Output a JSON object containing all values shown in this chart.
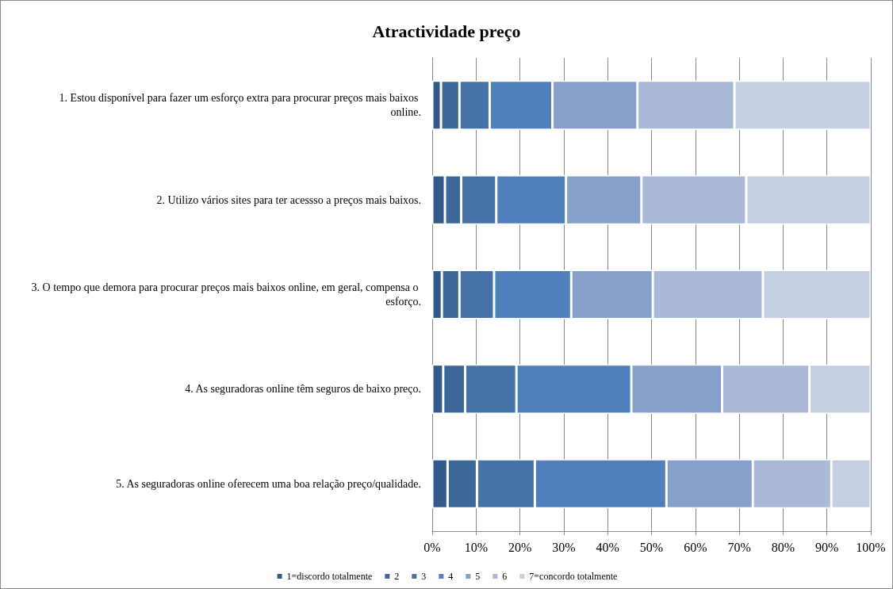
{
  "chart_data": {
    "type": "bar",
    "orientation": "horizontal",
    "stacked": true,
    "title": "Atractividade preço",
    "categories": [
      "1. Estou disponível para fazer um esforço extra para procurar preços mais baixos online.",
      "2. Utilizo vários sites para ter acessso a preços mais baixos.",
      "3. O tempo que demora para procurar preços mais baixos online, em geral, compensa o esforço.",
      "4. As seguradoras online têm seguros de baixo preço.",
      "5. As seguradoras online oferecem uma boa relação preço/qualidade."
    ],
    "series": [
      {
        "name": "1=discordo totalmente",
        "color": "#335a8a",
        "values": [
          2.0,
          2.9,
          2.2,
          2.5,
          3.5
        ]
      },
      {
        "name": "2",
        "color": "#3d6799",
        "values": [
          4.2,
          3.7,
          4.0,
          5.0,
          6.7
        ]
      },
      {
        "name": "3",
        "color": "#4672a7",
        "values": [
          6.9,
          8.0,
          7.9,
          11.7,
          13.2
        ]
      },
      {
        "name": "4",
        "color": "#4f80bb",
        "values": [
          14.3,
          15.9,
          17.6,
          26.2,
          30.0
        ]
      },
      {
        "name": "5",
        "color": "#86a0ca",
        "values": [
          19.4,
          17.2,
          18.6,
          20.7,
          19.7
        ]
      },
      {
        "name": "6",
        "color": "#aab9d7",
        "values": [
          22.1,
          23.9,
          25.1,
          19.9,
          17.9
        ]
      },
      {
        "name": "7=concordo totalmente",
        "color": "#c4cfe1",
        "values": [
          31.1,
          28.4,
          24.6,
          14.0,
          9.0
        ]
      }
    ],
    "xlim": [
      0,
      100
    ],
    "xticks": [
      {
        "value": 0,
        "label": "0%"
      },
      {
        "value": 10,
        "label": "10%"
      },
      {
        "value": 20,
        "label": "20%"
      },
      {
        "value": 30,
        "label": "30%"
      },
      {
        "value": 40,
        "label": "40%"
      },
      {
        "value": 50,
        "label": "50%"
      },
      {
        "value": 60,
        "label": "60%"
      },
      {
        "value": 70,
        "label": "70%"
      },
      {
        "value": 80,
        "label": "80%"
      },
      {
        "value": 90,
        "label": "90%"
      },
      {
        "value": 100,
        "label": "100%"
      }
    ],
    "grid": "x",
    "legend": "bottom"
  }
}
